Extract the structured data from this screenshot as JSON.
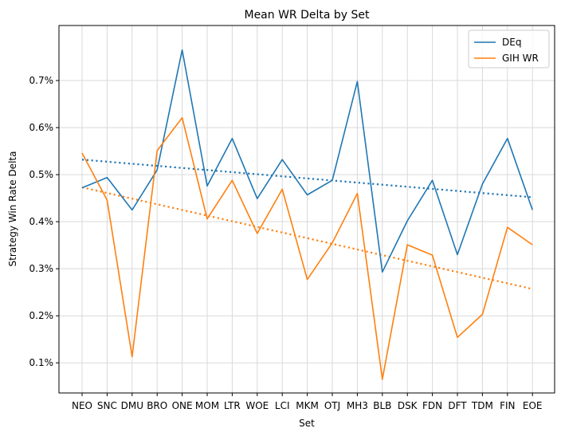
{
  "chart_data": {
    "type": "line",
    "title": "Mean WR Delta by Set",
    "xlabel": "Set",
    "ylabel": "Strategy Win Rate Delta",
    "categories": [
      "NEO",
      "SNC",
      "DMU",
      "BRO",
      "ONE",
      "MOM",
      "LTR",
      "WOE",
      "LCI",
      "MKM",
      "OTJ",
      "MH3",
      "BLB",
      "DSK",
      "FDN",
      "DFT",
      "TDM",
      "FIN",
      "EOE"
    ],
    "ylim": [
      0.00036,
      0.00817
    ],
    "yticks": [
      0.001,
      0.002,
      0.003,
      0.004,
      0.005,
      0.006,
      0.007
    ],
    "ytick_labels": [
      "0.1%",
      "0.2%",
      "0.3%",
      "0.4%",
      "0.5%",
      "0.6%",
      "0.7%"
    ],
    "grid": true,
    "legend_position": "top-right",
    "series": [
      {
        "name": "DEq",
        "color": "#1f77b4",
        "values": [
          0.00472,
          0.00494,
          0.00425,
          0.0051,
          0.00765,
          0.00476,
          0.00577,
          0.00449,
          0.00532,
          0.00457,
          0.00488,
          0.00698,
          0.00293,
          0.00402,
          0.00488,
          0.0033,
          0.0048,
          0.00577,
          0.00425
        ]
      },
      {
        "name": "GIH WR",
        "color": "#ff7f0e",
        "values": [
          0.00546,
          0.00446,
          0.00113,
          0.00551,
          0.00621,
          0.00406,
          0.00488,
          0.00375,
          0.00469,
          0.00277,
          0.00355,
          0.0046,
          0.00065,
          0.00351,
          0.00329,
          0.00154,
          0.00203,
          0.00388,
          0.00351
        ]
      }
    ],
    "trendlines": [
      {
        "series": "DEq",
        "color": "#1f77b4",
        "start": 0.00532,
        "end": 0.00452
      },
      {
        "series": "GIH WR",
        "color": "#ff7f0e",
        "start": 0.00473,
        "end": 0.00257
      }
    ]
  }
}
